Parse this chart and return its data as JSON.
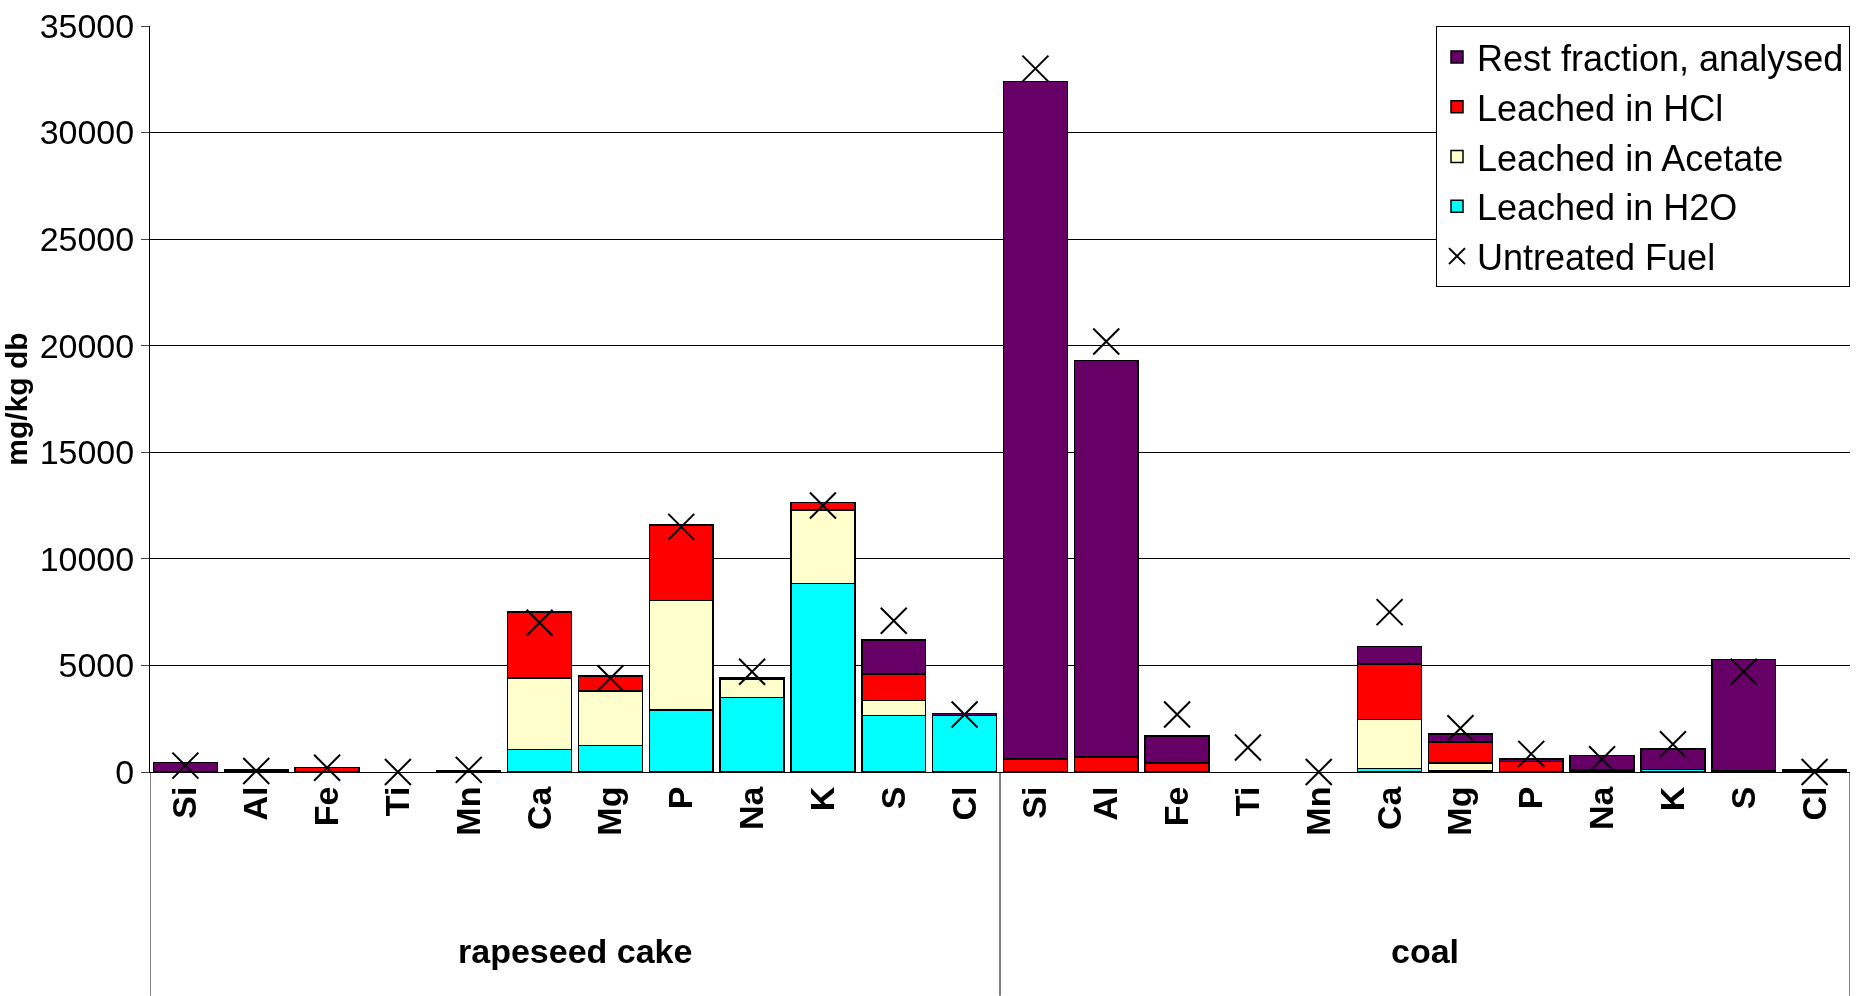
{
  "chart_data": {
    "type": "bar",
    "stacked": true,
    "ylabel": "mg/kg db",
    "categories": [
      "Si",
      "Al",
      "Fe",
      "Ti",
      "Mn",
      "Ca",
      "Mg",
      "P",
      "Na",
      "K",
      "S",
      "Cl",
      "Si",
      "Al",
      "Fe",
      "Ti",
      "Mn",
      "Ca",
      "Mg",
      "P",
      "Na",
      "K",
      "S",
      "Cl"
    ],
    "annotations": [
      "rapeseed cake",
      "coal"
    ],
    "series": [
      {
        "name": "Leached in H2O",
        "color": "#00ffff",
        "values": [
          null,
          null,
          null,
          null,
          null,
          1050,
          1250,
          2900,
          3500,
          8850,
          2650,
          2650,
          null,
          null,
          null,
          null,
          null,
          170,
          50,
          null,
          50,
          120,
          null,
          null
        ]
      },
      {
        "name": "Leached in Acetate",
        "color": "#ffffcc",
        "values": [
          null,
          null,
          null,
          null,
          null,
          3350,
          2550,
          5150,
          850,
          3450,
          700,
          null,
          null,
          null,
          null,
          null,
          null,
          2300,
          380,
          null,
          null,
          null,
          null,
          null
        ]
      },
      {
        "name": "Leached in HCl",
        "color": "#ff0000",
        "values": [
          null,
          null,
          200,
          null,
          null,
          3100,
          700,
          3550,
          50,
          350,
          1250,
          null,
          600,
          700,
          430,
          null,
          null,
          2600,
          970,
          500,
          50,
          null,
          50,
          null
        ]
      },
      {
        "name": "Rest fraction, analysed",
        "color": "#660066",
        "values": [
          450,
          100,
          null,
          null,
          80,
          null,
          null,
          null,
          null,
          null,
          1600,
          100,
          31800,
          18600,
          1250,
          null,
          null,
          830,
          380,
          120,
          680,
          950,
          5230,
          100
        ]
      },
      {
        "name": "Untreated Fuel",
        "type": "scatter",
        "marker": "cross",
        "color": "#000000",
        "values": [
          300,
          50,
          200,
          0,
          100,
          7000,
          4400,
          11500,
          4700,
          12500,
          7100,
          2700,
          33000,
          20200,
          2700,
          1150,
          0,
          7500,
          2050,
          850,
          600,
          1300,
          4700,
          0
        ]
      }
    ],
    "ylim": [
      0,
      35000
    ],
    "yticks": [
      0,
      5000,
      10000,
      15000,
      20000,
      25000,
      30000,
      35000
    ],
    "grid": "y",
    "legend": "top right"
  }
}
